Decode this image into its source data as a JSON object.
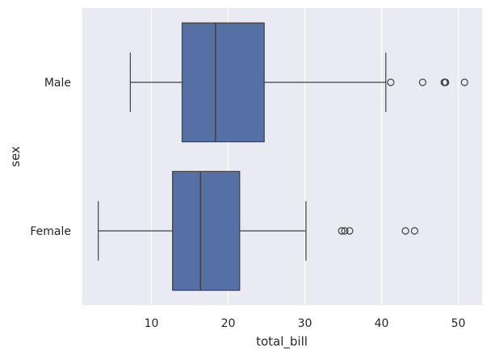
{
  "chart_data": {
    "type": "boxplot",
    "orientation": "horizontal",
    "xlabel": "total_bill",
    "ylabel": "sex",
    "xlim": [
      1.0,
      53.1
    ],
    "xticks": [
      10,
      20,
      30,
      40,
      50
    ],
    "grid": true,
    "colors": {
      "background": "#EAEAF2",
      "grid": "#FFFFFF",
      "box_fill": "#5470A4",
      "line": "#404040"
    },
    "categories": [
      "Male",
      "Female"
    ],
    "boxes": [
      {
        "category": "Male",
        "whisker_low": 7.25,
        "q1": 14.0,
        "median": 18.35,
        "q3": 24.7,
        "whisker_high": 40.55,
        "outliers": [
          41.19,
          45.35,
          48.17,
          48.27,
          48.33,
          50.81
        ]
      },
      {
        "category": "Female",
        "whisker_low": 3.07,
        "q1": 12.75,
        "median": 16.4,
        "q3": 21.5,
        "whisker_high": 30.14,
        "outliers": [
          34.8,
          35.2,
          35.83,
          43.11,
          44.3
        ]
      }
    ]
  }
}
